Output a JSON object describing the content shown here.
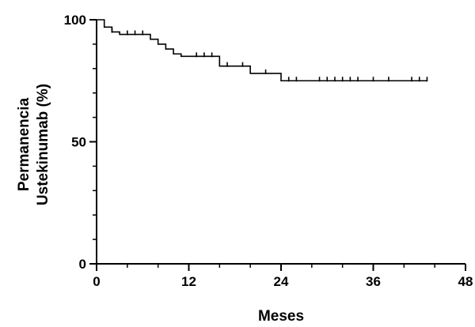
{
  "chart_data": {
    "type": "line",
    "subtype": "kaplan-meier step survival curve with censor marks",
    "title": "",
    "xlabel": "Meses",
    "ylabel_lines": [
      "Permanencia",
      "Ustekinumab (%)"
    ],
    "xlim": [
      0,
      48
    ],
    "ylim": [
      0,
      100
    ],
    "x_ticks": [
      0,
      12,
      24,
      36,
      48
    ],
    "y_ticks": [
      0,
      50,
      100
    ],
    "x_minor_step": 4,
    "y_minor_step": 10,
    "grid": false,
    "legend": "none",
    "line_color": "#000000",
    "series": [
      {
        "steps": [
          {
            "x": 0,
            "y": 100
          },
          {
            "x": 1,
            "y": 97
          },
          {
            "x": 2,
            "y": 95
          },
          {
            "x": 3,
            "y": 94
          },
          {
            "x": 7,
            "y": 92
          },
          {
            "x": 8,
            "y": 90
          },
          {
            "x": 9,
            "y": 88
          },
          {
            "x": 10,
            "y": 86
          },
          {
            "x": 11,
            "y": 85
          },
          {
            "x": 16,
            "y": 81
          },
          {
            "x": 20,
            "y": 78
          },
          {
            "x": 24,
            "y": 75
          }
        ],
        "end_x": 43,
        "censored": [
          {
            "x": 2,
            "y": 95
          },
          {
            "x": 4,
            "y": 94
          },
          {
            "x": 5,
            "y": 94
          },
          {
            "x": 6,
            "y": 94
          },
          {
            "x": 13,
            "y": 85
          },
          {
            "x": 14,
            "y": 85
          },
          {
            "x": 15,
            "y": 85
          },
          {
            "x": 17,
            "y": 81
          },
          {
            "x": 19,
            "y": 81
          },
          {
            "x": 22,
            "y": 78
          },
          {
            "x": 25,
            "y": 75
          },
          {
            "x": 26,
            "y": 75
          },
          {
            "x": 29,
            "y": 75
          },
          {
            "x": 30,
            "y": 75
          },
          {
            "x": 31,
            "y": 75
          },
          {
            "x": 32,
            "y": 75
          },
          {
            "x": 33,
            "y": 75
          },
          {
            "x": 34,
            "y": 75
          },
          {
            "x": 36,
            "y": 75
          },
          {
            "x": 38,
            "y": 75
          },
          {
            "x": 41,
            "y": 75
          },
          {
            "x": 42,
            "y": 75
          },
          {
            "x": 43,
            "y": 75
          }
        ]
      }
    ]
  }
}
